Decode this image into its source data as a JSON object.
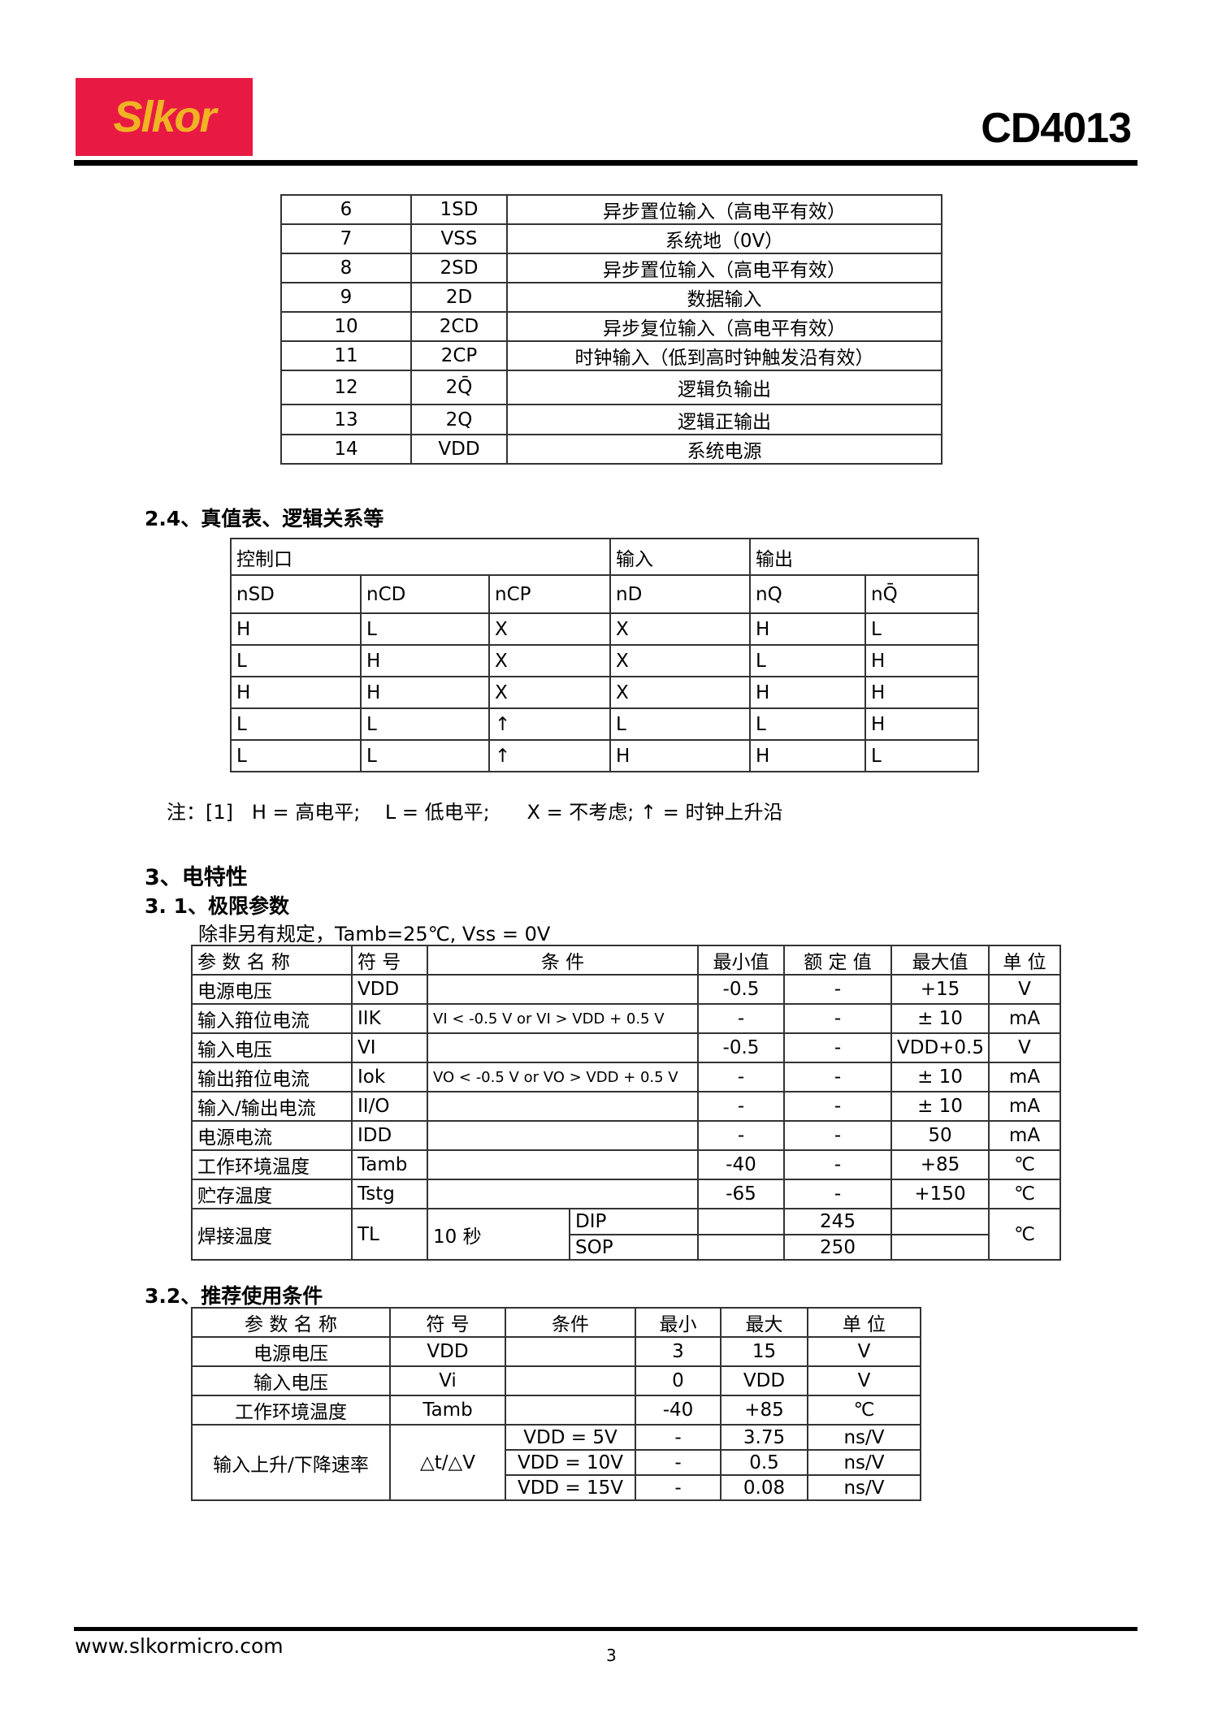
{
  "header": {
    "logo": "Slkor",
    "part": "CD4013",
    "brand_color": "#e81a44",
    "logo_text_color": "#f0b323"
  },
  "pin_table": [
    [
      "6",
      "1SD",
      "异步置位输入（高电平有效）"
    ],
    [
      "7",
      "VSS",
      "系统地（0V）"
    ],
    [
      "8",
      "2SD",
      "异步置位输入（高电平有效）"
    ],
    [
      "9",
      "2D",
      "数据输入"
    ],
    [
      "10",
      "2CD",
      "异步复位输入（高电平有效）"
    ],
    [
      "11",
      "2CP",
      "时钟输入（低到高时钟触发沿有效）"
    ],
    [
      "12",
      "2Q̄",
      "逻辑负输出"
    ],
    [
      "13",
      "2Q",
      "逻辑正输出"
    ],
    [
      "14",
      "VDD",
      "系统电源"
    ]
  ],
  "truth": {
    "heading": "2.4、真值表、逻辑关系等",
    "groups": [
      "控制口",
      "输入",
      "输出"
    ],
    "cols": [
      "nSD",
      "nCD",
      "nCP",
      "nD",
      "nQ",
      "nQ̄"
    ],
    "rows": [
      [
        "H",
        "L",
        "X",
        "X",
        "H",
        "L"
      ],
      [
        "L",
        "H",
        "X",
        "X",
        "L",
        "H"
      ],
      [
        "H",
        "H",
        "X",
        "X",
        "H",
        "H"
      ],
      [
        "L",
        "L",
        "↑",
        "L",
        "L",
        "H"
      ],
      [
        "L",
        "L",
        "↑",
        "H",
        "H",
        "L"
      ]
    ],
    "note": "注：[1]   H = 高电平;    L = 低电平;      X = 不考虑; ↑ = 时钟上升沿"
  },
  "section3": {
    "heading": "3、电特性",
    "sub1": "3.  1、极限参数",
    "cond": "除非另有规定，Tamb=25℃, Vss  = 0V"
  },
  "abs_table": {
    "headers": [
      "参 数 名 称",
      "符 号",
      "条 件",
      "最小值",
      "额 定 值",
      "最大值",
      "单 位"
    ],
    "rows": [
      [
        "电源电压",
        "VDD",
        "",
        "-0.5",
        "-",
        "+15",
        "V"
      ],
      [
        "输入箝位电流",
        "IIK",
        "VI < -0.5 V or VI > VDD + 0.5 V",
        "-",
        "-",
        "± 10",
        "mA"
      ],
      [
        "输入电压",
        "VI",
        "",
        "-0.5",
        "-",
        "VDD+0.5",
        "V"
      ],
      [
        "输出箝位电流",
        "Iok",
        "VO < -0.5 V or VO > VDD + 0.5 V",
        "-",
        "-",
        "± 10",
        "mA"
      ],
      [
        "输入/输出电流",
        "II/O",
        "",
        "-",
        "-",
        "± 10",
        "mA"
      ],
      [
        "电源电流",
        "IDD",
        "",
        "-",
        "-",
        "50",
        "mA"
      ],
      [
        "工作环境温度",
        "Tamb",
        "",
        "-40",
        "-",
        "+85",
        "℃"
      ],
      [
        "贮存温度",
        "Tstg",
        "",
        "-65",
        "-",
        "+150",
        "℃"
      ]
    ],
    "solder": {
      "name": "焊接温度",
      "sym": "TL",
      "time": "10 秒",
      "pkg": [
        "DIP",
        "SOP"
      ],
      "val": [
        "245",
        "250"
      ],
      "unit": "℃"
    }
  },
  "rec_table": {
    "heading": "3.2、推荐使用条件",
    "headers": [
      "参 数 名 称",
      "符 号",
      "条件",
      "最小",
      "最大",
      "单 位"
    ],
    "rows": [
      [
        "电源电压",
        "VDD",
        "",
        "3",
        "15",
        "V"
      ],
      [
        "输入电压",
        "Vi",
        "",
        "0",
        "VDD",
        "V"
      ],
      [
        "工作环境温度",
        "Tamb",
        "",
        "-40",
        "+85",
        "℃"
      ]
    ],
    "rate": {
      "name": "输入上升/下降速率",
      "sym": "△t/△V",
      "conds": [
        "VDD = 5V",
        "VDD = 10V",
        "VDD = 15V"
      ],
      "min": [
        "-",
        "-",
        "-"
      ],
      "max": [
        "3.75",
        "0.5",
        "0.08"
      ],
      "unit": [
        "ns/V",
        "ns/V",
        "ns/V"
      ]
    }
  },
  "footer": {
    "url": "www.slkormicro.com",
    "page": "3"
  }
}
